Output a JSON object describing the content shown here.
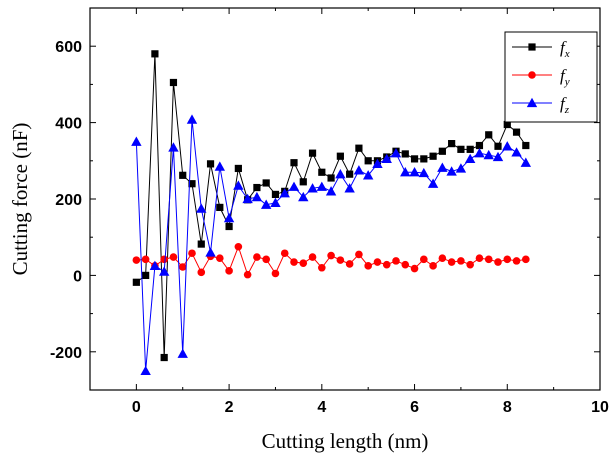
{
  "chart_data": {
    "type": "line",
    "xlabel": "Cutting length (nm)",
    "ylabel": "Cutting force (nF)",
    "xlim": [
      -1,
      10
    ],
    "ylim": [
      -300,
      700
    ],
    "xticks": [
      0,
      2,
      4,
      6,
      8,
      10
    ],
    "yticks": [
      -200,
      0,
      200,
      400,
      600
    ],
    "grid": false,
    "legend_position": "top-right",
    "x": [
      0,
      0.2,
      0.4,
      0.6,
      0.8,
      1.0,
      1.2,
      1.4,
      1.6,
      1.8,
      2.0,
      2.2,
      2.4,
      2.6,
      2.8,
      3.0,
      3.2,
      3.4,
      3.6,
      3.8,
      4.0,
      4.2,
      4.4,
      4.6,
      4.8,
      5.0,
      5.2,
      5.4,
      5.6,
      5.8,
      6.0,
      6.2,
      6.4,
      6.6,
      6.8,
      7.0,
      7.2,
      7.4,
      7.6,
      7.8,
      8.0,
      8.2,
      8.4
    ],
    "series": [
      {
        "name": "fx",
        "label_base": "f",
        "label_sub": "x",
        "color": "#000000",
        "marker": "square",
        "values": [
          -18,
          0,
          580,
          -215,
          505,
          262,
          240,
          82,
          292,
          178,
          128,
          280,
          198,
          230,
          242,
          212,
          220,
          295,
          245,
          320,
          270,
          255,
          312,
          265,
          333,
          300,
          300,
          310,
          325,
          318,
          305,
          305,
          312,
          325,
          345,
          330,
          330,
          340,
          368,
          338,
          395,
          375,
          340
        ]
      },
      {
        "name": "fy",
        "label_base": "f",
        "label_sub": "y",
        "color": "#ff0000",
        "marker": "circle",
        "values": [
          40,
          42,
          25,
          42,
          48,
          22,
          58,
          8,
          50,
          45,
          12,
          75,
          2,
          48,
          42,
          5,
          58,
          35,
          32,
          48,
          20,
          52,
          40,
          30,
          55,
          25,
          35,
          28,
          38,
          28,
          18,
          42,
          25,
          45,
          35,
          38,
          28,
          45,
          42,
          35,
          42,
          38,
          42
        ]
      },
      {
        "name": "fz",
        "label_base": "f",
        "label_sub": "z",
        "color": "#0000ff",
        "marker": "triangle",
        "values": [
          350,
          -250,
          25,
          10,
          335,
          -205,
          408,
          175,
          60,
          285,
          150,
          235,
          200,
          205,
          185,
          190,
          215,
          232,
          205,
          228,
          232,
          220,
          265,
          228,
          275,
          262,
          292,
          305,
          320,
          270,
          270,
          268,
          240,
          282,
          272,
          280,
          305,
          320,
          315,
          310,
          338,
          322,
          295
        ]
      }
    ]
  }
}
